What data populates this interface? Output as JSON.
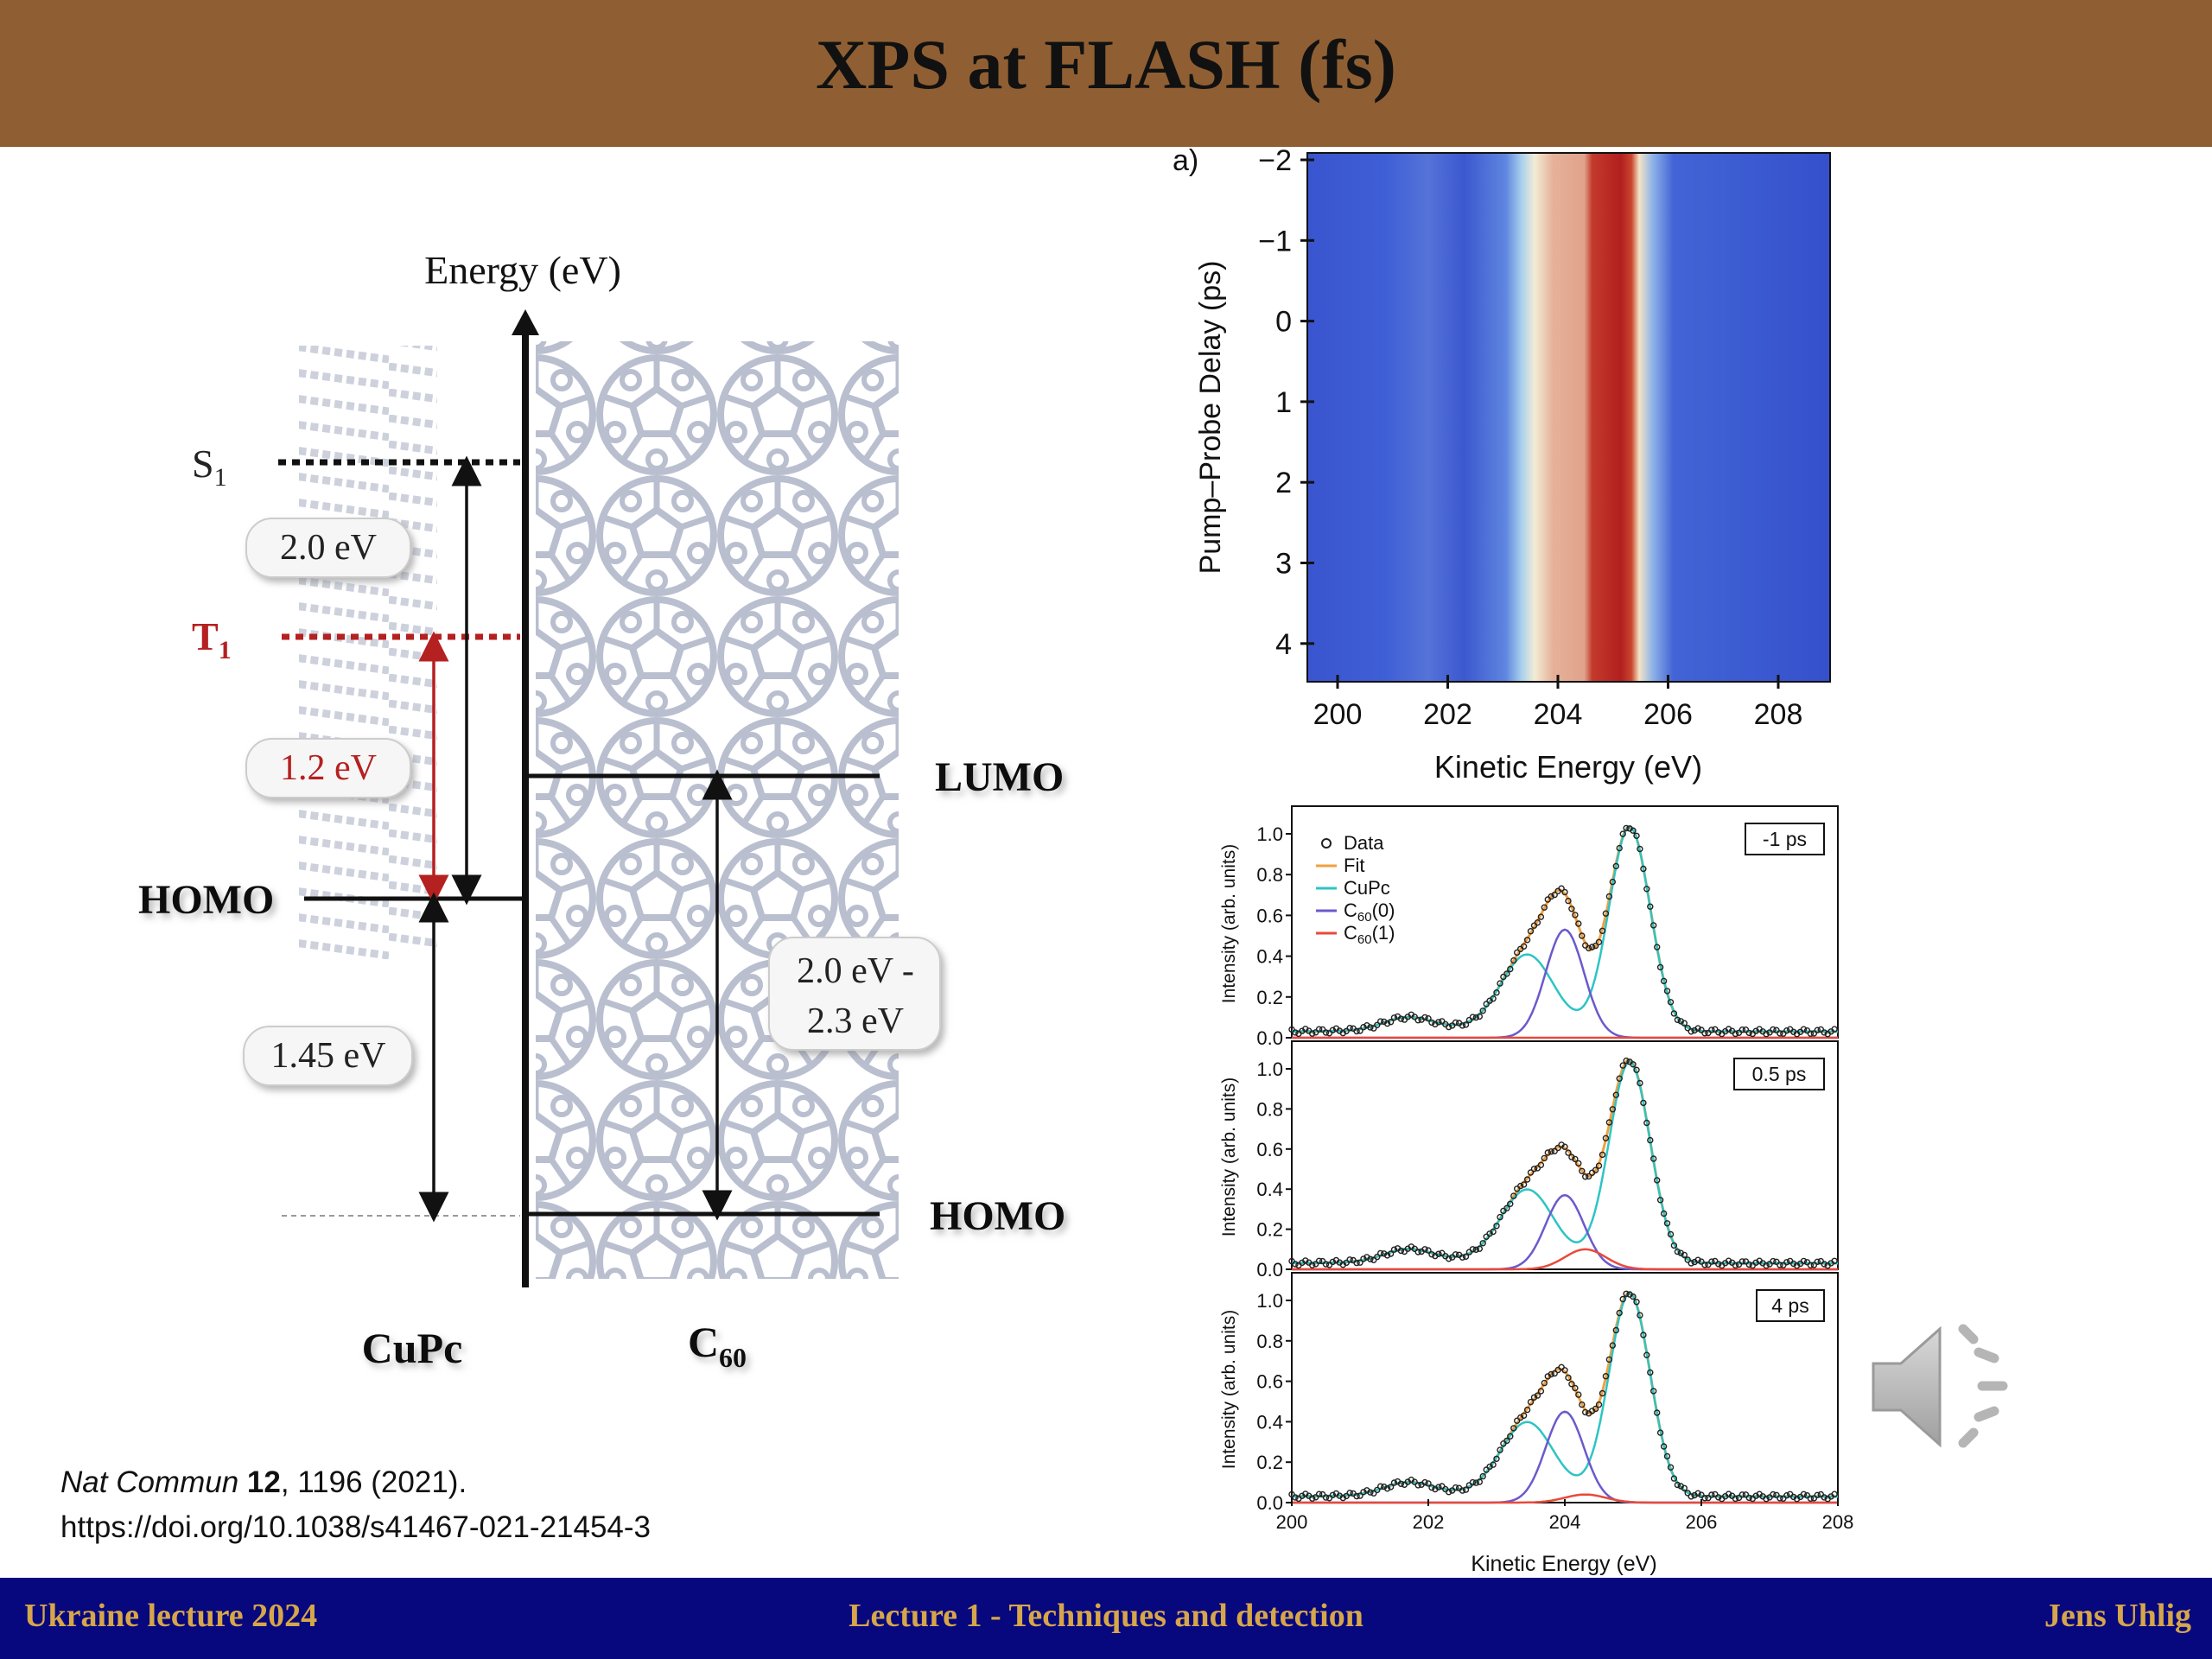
{
  "title": "XPS at FLASH (fs)",
  "footer": {
    "left": "Ukraine lecture 2024",
    "center": "Lecture 1 - Techniques and detection",
    "right": "Jens Uhlig"
  },
  "citation": {
    "journal": "Nat Commun",
    "volume": "12",
    "rest": ", 1196 (2021).",
    "doi": "https://doi.org/10.1038/s41467-021-21454-3"
  },
  "diagram": {
    "axis_label": "Energy (eV)",
    "s1": "S",
    "s1_sub": "1",
    "t1": "T",
    "t1_sub": "1",
    "homo_left": "HOMO",
    "lumo_right": "LUMO",
    "homo_right": "HOMO",
    "gap_s1": "2.0 eV",
    "gap_t1": "1.2 eV",
    "gap_homo_offset": "1.45 eV",
    "gap_c60_line1": "2.0 eV -",
    "gap_c60_line2": "2.3 eV",
    "label_cupc": "CuPc",
    "label_c60": "C",
    "label_c60_sub": "60",
    "colors": {
      "t1": "#b52020",
      "molecule": "#b9bfcf"
    }
  },
  "heatmap": {
    "panel_label": "a)",
    "ylabel": "Pump–Probe Delay (ps)",
    "xlabel": "Kinetic Energy (eV)",
    "yticks": [
      "−2",
      "−1",
      "0",
      "1",
      "2",
      "3",
      "4"
    ],
    "xticks": [
      "200",
      "202",
      "204",
      "206",
      "208"
    ]
  },
  "spectra": {
    "ylabel": "Intensity (arb. units)",
    "xlabel": "Kinetic Energy (eV)",
    "yticks": [
      "0.0",
      "0.2",
      "0.4",
      "0.6",
      "0.8",
      "1.0"
    ],
    "xticks": [
      "200",
      "202",
      "204",
      "206",
      "208"
    ],
    "panels": [
      "-1 ps",
      "0.5 ps",
      "4 ps"
    ],
    "legend": [
      {
        "label": "Data",
        "sub": "",
        "after": "",
        "color": "#222222",
        "marker": "circle"
      },
      {
        "label": "Fit",
        "sub": "",
        "after": "",
        "color": "#f0a040",
        "marker": "line"
      },
      {
        "label": "CuPc",
        "sub": "",
        "after": "",
        "color": "#2ec4c4",
        "marker": "line"
      },
      {
        "label": "C",
        "sub": "60",
        "after": "(0)",
        "color": "#6a5acd",
        "marker": "line"
      },
      {
        "label": "C",
        "sub": "60",
        "after": "(1)",
        "color": "#e84a3a",
        "marker": "line"
      }
    ]
  },
  "icons": {
    "speaker": "speaker-icon"
  }
}
